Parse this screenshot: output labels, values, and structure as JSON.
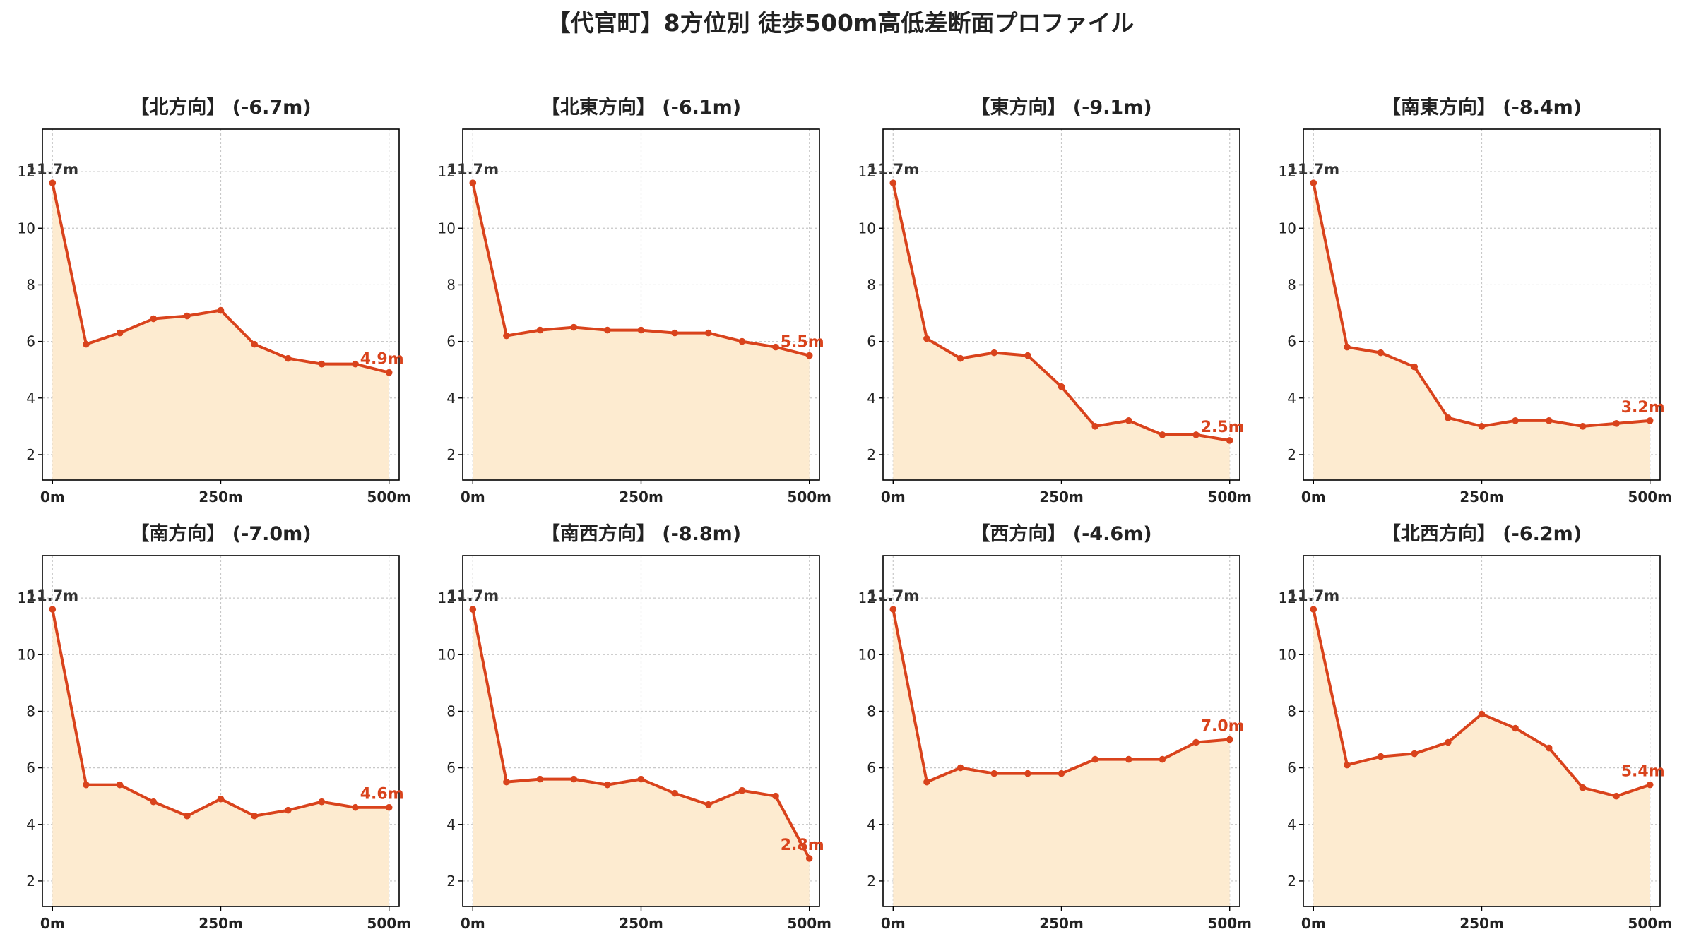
{
  "figure": {
    "title": "【代官町】8方位別 徒歩500m高低差断面プロファイル"
  },
  "colors": {
    "line": "#d9431c",
    "fill": "#fdebd0",
    "grid": "#c8c8c8",
    "axis": "#000000",
    "start_label": "#333333"
  },
  "chart_data": [
    {
      "type": "area",
      "title": "【北方向】 (-6.7m)",
      "x": [
        0,
        50,
        100,
        150,
        200,
        250,
        300,
        350,
        400,
        450,
        500
      ],
      "y": [
        11.6,
        5.9,
        6.3,
        6.8,
        6.9,
        7.1,
        5.9,
        5.4,
        5.2,
        5.2,
        4.9
      ],
      "start_label": "11.7m",
      "end_label": "4.9m",
      "xticks": [
        "0m",
        "250m",
        "500m"
      ],
      "yticks": [
        2,
        4,
        6,
        8,
        10,
        12
      ],
      "ylim": [
        1.1,
        13.5
      ],
      "xlim": [
        -15,
        515
      ],
      "grid": true
    },
    {
      "type": "area",
      "title": "【北東方向】 (-6.1m)",
      "x": [
        0,
        50,
        100,
        150,
        200,
        250,
        300,
        350,
        400,
        450,
        500
      ],
      "y": [
        11.6,
        6.2,
        6.4,
        6.5,
        6.4,
        6.4,
        6.3,
        6.3,
        6.0,
        5.8,
        5.5
      ],
      "start_label": "11.7m",
      "end_label": "5.5m",
      "xticks": [
        "0m",
        "250m",
        "500m"
      ],
      "yticks": [
        2,
        4,
        6,
        8,
        10,
        12
      ],
      "ylim": [
        1.1,
        13.5
      ],
      "xlim": [
        -15,
        515
      ],
      "grid": true
    },
    {
      "type": "area",
      "title": "【東方向】 (-9.1m)",
      "x": [
        0,
        50,
        100,
        150,
        200,
        250,
        300,
        350,
        400,
        450,
        500
      ],
      "y": [
        11.6,
        6.1,
        5.4,
        5.6,
        5.5,
        4.4,
        3.0,
        3.2,
        2.7,
        2.7,
        2.5
      ],
      "start_label": "11.7m",
      "end_label": "2.5m",
      "xticks": [
        "0m",
        "250m",
        "500m"
      ],
      "yticks": [
        2,
        4,
        6,
        8,
        10,
        12
      ],
      "ylim": [
        1.1,
        13.5
      ],
      "xlim": [
        -15,
        515
      ],
      "grid": true
    },
    {
      "type": "area",
      "title": "【南東方向】 (-8.4m)",
      "x": [
        0,
        50,
        100,
        150,
        200,
        250,
        300,
        350,
        400,
        450,
        500
      ],
      "y": [
        11.6,
        5.8,
        5.6,
        5.1,
        3.3,
        3.0,
        3.2,
        3.2,
        3.0,
        3.1,
        3.2
      ],
      "start_label": "11.7m",
      "end_label": "3.2m",
      "xticks": [
        "0m",
        "250m",
        "500m"
      ],
      "yticks": [
        2,
        4,
        6,
        8,
        10,
        12
      ],
      "ylim": [
        1.1,
        13.5
      ],
      "xlim": [
        -15,
        515
      ],
      "grid": true
    },
    {
      "type": "area",
      "title": "【南方向】 (-7.0m)",
      "x": [
        0,
        50,
        100,
        150,
        200,
        250,
        300,
        350,
        400,
        450,
        500
      ],
      "y": [
        11.6,
        5.4,
        5.4,
        4.8,
        4.3,
        4.9,
        4.3,
        4.5,
        4.8,
        4.6,
        4.6
      ],
      "start_label": "11.7m",
      "end_label": "4.6m",
      "xticks": [
        "0m",
        "250m",
        "500m"
      ],
      "yticks": [
        2,
        4,
        6,
        8,
        10,
        12
      ],
      "ylim": [
        1.1,
        13.5
      ],
      "xlim": [
        -15,
        515
      ],
      "grid": true
    },
    {
      "type": "area",
      "title": "【南西方向】 (-8.8m)",
      "x": [
        0,
        50,
        100,
        150,
        200,
        250,
        300,
        350,
        400,
        450,
        500
      ],
      "y": [
        11.6,
        5.5,
        5.6,
        5.6,
        5.4,
        5.6,
        5.1,
        4.7,
        5.2,
        5.0,
        2.8
      ],
      "start_label": "11.7m",
      "end_label": "2.8m",
      "xticks": [
        "0m",
        "250m",
        "500m"
      ],
      "yticks": [
        2,
        4,
        6,
        8,
        10,
        12
      ],
      "ylim": [
        1.1,
        13.5
      ],
      "xlim": [
        -15,
        515
      ],
      "grid": true
    },
    {
      "type": "area",
      "title": "【西方向】 (-4.6m)",
      "x": [
        0,
        50,
        100,
        150,
        200,
        250,
        300,
        350,
        400,
        450,
        500
      ],
      "y": [
        11.6,
        5.5,
        6.0,
        5.8,
        5.8,
        5.8,
        6.3,
        6.3,
        6.3,
        6.9,
        7.0
      ],
      "start_label": "11.7m",
      "end_label": "7.0m",
      "xticks": [
        "0m",
        "250m",
        "500m"
      ],
      "yticks": [
        2,
        4,
        6,
        8,
        10,
        12
      ],
      "ylim": [
        1.1,
        13.5
      ],
      "xlim": [
        -15,
        515
      ],
      "grid": true
    },
    {
      "type": "area",
      "title": "【北西方向】 (-6.2m)",
      "x": [
        0,
        50,
        100,
        150,
        200,
        250,
        300,
        350,
        400,
        450,
        500
      ],
      "y": [
        11.6,
        6.1,
        6.4,
        6.5,
        6.9,
        7.9,
        7.4,
        6.7,
        5.3,
        5.0,
        5.4
      ],
      "start_label": "11.7m",
      "end_label": "5.4m",
      "xticks": [
        "0m",
        "250m",
        "500m"
      ],
      "yticks": [
        2,
        4,
        6,
        8,
        10,
        12
      ],
      "ylim": [
        1.1,
        13.5
      ],
      "xlim": [
        -15,
        515
      ],
      "grid": true
    }
  ]
}
